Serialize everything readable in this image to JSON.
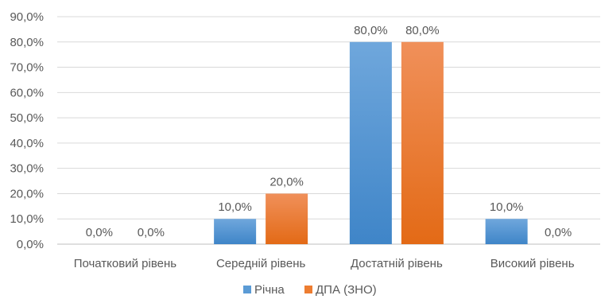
{
  "chart_data": {
    "type": "bar",
    "categories": [
      "Початковий рівень",
      "Середній рівень",
      "Достатній рівень",
      "Високий рівень"
    ],
    "series": [
      {
        "name": "Річна",
        "values": [
          0,
          10,
          80,
          10
        ],
        "labels": [
          "0,0%",
          "10,0%",
          "80,0%",
          "10,0%"
        ],
        "color": "#5B9BD5"
      },
      {
        "name": "ДПА (ЗНО)",
        "values": [
          0,
          20,
          80,
          0
        ],
        "labels": [
          "0,0%",
          "20,0%",
          "80,0%",
          "0,0%"
        ],
        "color": "#ED7D31"
      }
    ],
    "yticks": [
      "0,0%",
      "10,0%",
      "20,0%",
      "30,0%",
      "40,0%",
      "50,0%",
      "60,0%",
      "70,0%",
      "80,0%",
      "90,0%"
    ],
    "ylim": [
      0,
      90
    ],
    "grid": true,
    "legend": "bottom"
  }
}
